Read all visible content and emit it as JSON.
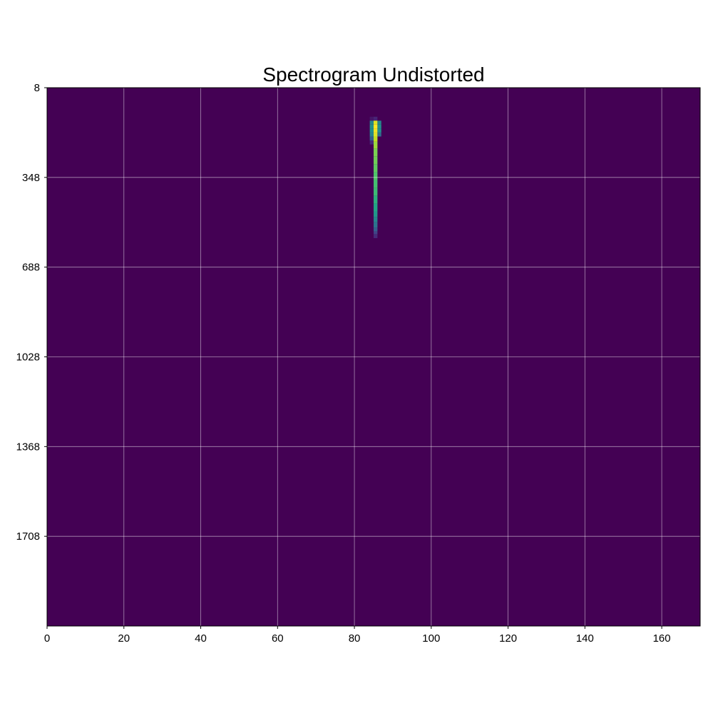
{
  "chart_data": {
    "type": "heatmap",
    "title": "Spectrogram Undistorted",
    "xlabel": "",
    "ylabel": "",
    "xlim": [
      0,
      170
    ],
    "ylim": [
      2048,
      8
    ],
    "x_ticks": [
      0,
      20,
      40,
      60,
      80,
      100,
      120,
      140,
      160
    ],
    "x_tick_labels": [
      "0",
      "20",
      "40",
      "60",
      "80",
      "100",
      "120",
      "140",
      "160"
    ],
    "y_ticks": [
      8,
      348,
      688,
      1028,
      1368,
      1708
    ],
    "y_tick_labels": [
      "8",
      "348",
      "688",
      "1028",
      "1368",
      "1708"
    ],
    "grid": true,
    "colormap": "viridis",
    "background_value": 0,
    "value_range": [
      0,
      1
    ],
    "cells": [
      {
        "x0": 84,
        "x1": 85,
        "y0": 118,
        "y1": 133,
        "value": 0.06
      },
      {
        "x0": 84,
        "x1": 85,
        "y0": 133,
        "y1": 148,
        "value": 0.45
      },
      {
        "x0": 84,
        "x1": 85,
        "y0": 148,
        "y1": 163,
        "value": 0.5
      },
      {
        "x0": 84,
        "x1": 85,
        "y0": 163,
        "y1": 178,
        "value": 0.5
      },
      {
        "x0": 84,
        "x1": 85,
        "y0": 178,
        "y1": 193,
        "value": 0.45
      },
      {
        "x0": 84,
        "x1": 85,
        "y0": 193,
        "y1": 208,
        "value": 0.3
      },
      {
        "x0": 84,
        "x1": 85,
        "y0": 208,
        "y1": 223,
        "value": 0.12
      },
      {
        "x0": 85,
        "x1": 86,
        "y0": 118,
        "y1": 133,
        "value": 0.1
      },
      {
        "x0": 85,
        "x1": 86,
        "y0": 133,
        "y1": 148,
        "value": 0.95
      },
      {
        "x0": 85,
        "x1": 86,
        "y0": 148,
        "y1": 163,
        "value": 1.0
      },
      {
        "x0": 85,
        "x1": 86,
        "y0": 163,
        "y1": 178,
        "value": 0.98
      },
      {
        "x0": 85,
        "x1": 86,
        "y0": 178,
        "y1": 193,
        "value": 0.95
      },
      {
        "x0": 85,
        "x1": 86,
        "y0": 193,
        "y1": 213,
        "value": 0.9
      },
      {
        "x0": 85,
        "x1": 86,
        "y0": 213,
        "y1": 238,
        "value": 0.85
      },
      {
        "x0": 85,
        "x1": 86,
        "y0": 238,
        "y1": 268,
        "value": 0.8
      },
      {
        "x0": 85,
        "x1": 86,
        "y0": 268,
        "y1": 298,
        "value": 0.78
      },
      {
        "x0": 85,
        "x1": 86,
        "y0": 298,
        "y1": 328,
        "value": 0.75
      },
      {
        "x0": 85,
        "x1": 86,
        "y0": 328,
        "y1": 358,
        "value": 0.72
      },
      {
        "x0": 85,
        "x1": 86,
        "y0": 358,
        "y1": 388,
        "value": 0.7
      },
      {
        "x0": 85,
        "x1": 86,
        "y0": 388,
        "y1": 418,
        "value": 0.68
      },
      {
        "x0": 85,
        "x1": 86,
        "y0": 418,
        "y1": 448,
        "value": 0.63
      },
      {
        "x0": 85,
        "x1": 86,
        "y0": 448,
        "y1": 478,
        "value": 0.58
      },
      {
        "x0": 85,
        "x1": 86,
        "y0": 478,
        "y1": 498,
        "value": 0.52
      },
      {
        "x0": 85,
        "x1": 86,
        "y0": 498,
        "y1": 518,
        "value": 0.45
      },
      {
        "x0": 85,
        "x1": 86,
        "y0": 518,
        "y1": 538,
        "value": 0.38
      },
      {
        "x0": 85,
        "x1": 86,
        "y0": 538,
        "y1": 553,
        "value": 0.3
      },
      {
        "x0": 85,
        "x1": 86,
        "y0": 553,
        "y1": 563,
        "value": 0.2
      },
      {
        "x0": 85,
        "x1": 86,
        "y0": 563,
        "y1": 578,
        "value": 0.12
      },
      {
        "x0": 86,
        "x1": 87,
        "y0": 133,
        "y1": 148,
        "value": 0.45
      },
      {
        "x0": 86,
        "x1": 87,
        "y0": 148,
        "y1": 163,
        "value": 0.5
      },
      {
        "x0": 86,
        "x1": 87,
        "y0": 163,
        "y1": 178,
        "value": 0.5
      },
      {
        "x0": 86,
        "x1": 87,
        "y0": 178,
        "y1": 193,
        "value": 0.35
      }
    ]
  }
}
